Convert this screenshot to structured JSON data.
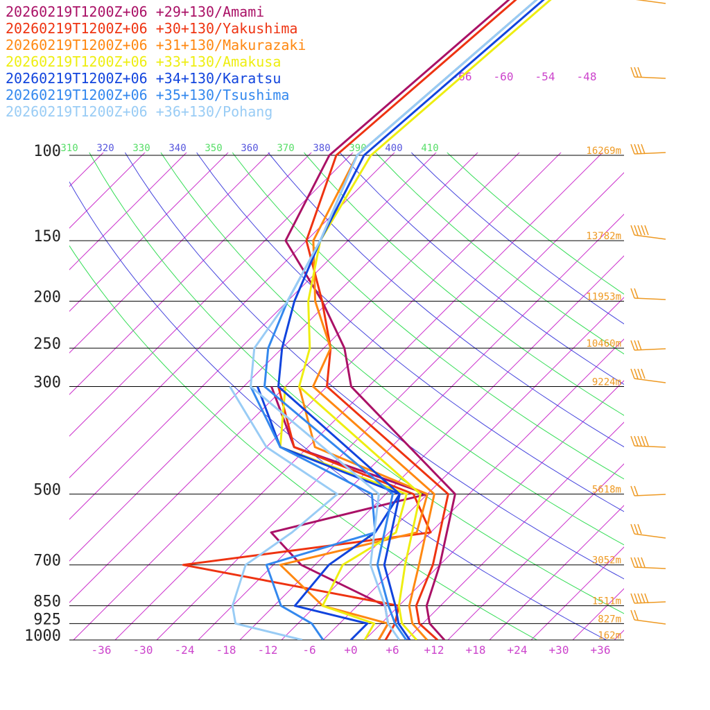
{
  "chart_data": {
    "type": "line",
    "subtype": "skew-T log-P sounding",
    "pressure_levels": [
      100,
      150,
      200,
      250,
      300,
      500,
      700,
      850,
      925,
      1000
    ],
    "pressure_labels": [
      "100",
      "150",
      "200",
      "250",
      "300",
      "500",
      "700",
      "850",
      "925",
      "1000"
    ],
    "heights": [
      {
        "p": 100,
        "label": "16269m"
      },
      {
        "p": 150,
        "label": "13782m"
      },
      {
        "p": 200,
        "label": "11953m"
      },
      {
        "p": 250,
        "label": "10460m"
      },
      {
        "p": 300,
        "label": "9224m"
      },
      {
        "p": 500,
        "label": "5618m"
      },
      {
        "p": 700,
        "label": "3052m"
      },
      {
        "p": 850,
        "label": "1511m"
      },
      {
        "p": 925,
        "label": "827m"
      },
      {
        "p": 1000,
        "label": "162m"
      }
    ],
    "x_ticks": [
      "-36",
      "-30",
      "-24",
      "-18",
      "-12",
      "-6",
      "+0",
      "+6",
      "+12",
      "+18",
      "+24",
      "+30",
      "+36"
    ],
    "x_tick_values": [
      -36,
      -30,
      -24,
      -18,
      -12,
      -6,
      0,
      6,
      12,
      18,
      24,
      30,
      36
    ],
    "theta_labels": [
      "310",
      "320",
      "330",
      "340",
      "350",
      "360",
      "370",
      "380",
      "390",
      "400",
      "410"
    ],
    "mixing_labels": [
      "-66",
      "-60",
      "-54",
      "-48"
    ],
    "series": [
      {
        "name": "20260219T1200Z+06 +29+130/Amami",
        "color": "#aa1166",
        "temp": [
          [
            1000,
            13.5
          ],
          [
            925,
            9
          ],
          [
            850,
            6
          ],
          [
            700,
            2
          ],
          [
            500,
            -6
          ],
          [
            300,
            -36.5
          ],
          [
            250,
            -43
          ],
          [
            200,
            -53
          ],
          [
            150,
            -67
          ],
          [
            100,
            -73
          ]
        ],
        "dew": [
          [
            1000,
            4
          ],
          [
            925,
            3
          ],
          [
            850,
            0
          ],
          [
            700,
            -18
          ],
          [
            600,
            -27
          ],
          [
            500,
            -10
          ],
          [
            400,
            -36
          ],
          [
            300,
            -48
          ]
        ]
      },
      {
        "name": "20260219T1200Z+06 +30+130/Yakushima",
        "color": "#ee3311",
        "temp": [
          [
            1000,
            12.5
          ],
          [
            925,
            7.5
          ],
          [
            850,
            4.5
          ],
          [
            700,
            1
          ],
          [
            500,
            -7
          ],
          [
            300,
            -40
          ],
          [
            250,
            -45
          ],
          [
            200,
            -53
          ],
          [
            150,
            -64
          ],
          [
            100,
            -72
          ]
        ],
        "dew": [
          [
            1000,
            5
          ],
          [
            925,
            4
          ],
          [
            850,
            2
          ],
          [
            700,
            -35
          ],
          [
            600,
            -4
          ],
          [
            500,
            -12
          ],
          [
            400,
            -36
          ],
          [
            300,
            -47
          ]
        ]
      },
      {
        "name": "20260219T1200Z+06 +31+130/Makurazaki",
        "color": "#ff8811",
        "temp": [
          [
            1000,
            11
          ],
          [
            925,
            6.5
          ],
          [
            850,
            3.5
          ],
          [
            700,
            -1
          ],
          [
            500,
            -9
          ],
          [
            300,
            -42
          ],
          [
            250,
            -45
          ],
          [
            200,
            -54
          ],
          [
            150,
            -63
          ],
          [
            100,
            -69
          ]
        ],
        "dew": [
          [
            1000,
            4
          ],
          [
            925,
            3
          ],
          [
            850,
            -9
          ],
          [
            700,
            -21
          ],
          [
            600,
            -6
          ],
          [
            500,
            -10
          ],
          [
            400,
            -33
          ],
          [
            300,
            -44
          ]
        ]
      },
      {
        "name": "20260219T1200Z+06 +33+130/Amakusa",
        "color": "#eeee11",
        "temp": [
          [
            1000,
            9.5
          ],
          [
            925,
            5
          ],
          [
            850,
            2
          ],
          [
            700,
            -3
          ],
          [
            500,
            -11
          ],
          [
            300,
            -44
          ],
          [
            250,
            -48
          ],
          [
            200,
            -55
          ],
          [
            150,
            -62
          ],
          [
            100,
            -67
          ]
        ],
        "dew": [
          [
            1000,
            2
          ],
          [
            925,
            1
          ],
          [
            850,
            -9
          ],
          [
            700,
            -12
          ],
          [
            600,
            -9
          ],
          [
            500,
            -13
          ],
          [
            400,
            -38
          ],
          [
            300,
            -46
          ]
        ]
      },
      {
        "name": "20260219T1200Z+06 +34+130/Karatsu",
        "color": "#1144dd",
        "temp": [
          [
            1000,
            8.5
          ],
          [
            925,
            4.5
          ],
          [
            850,
            1.5
          ],
          [
            700,
            -6
          ],
          [
            500,
            -14
          ],
          [
            300,
            -47
          ],
          [
            250,
            -52
          ],
          [
            200,
            -57
          ],
          [
            150,
            -62
          ],
          [
            100,
            -68
          ]
        ],
        "dew": [
          [
            1000,
            0
          ],
          [
            925,
            0
          ],
          [
            850,
            -13
          ],
          [
            700,
            -14
          ],
          [
            600,
            -12
          ],
          [
            500,
            -14
          ],
          [
            400,
            -38
          ],
          [
            300,
            -50
          ]
        ]
      },
      {
        "name": "20260219T1200Z+06 +35+130/Tsushima",
        "color": "#3388ee",
        "temp": [
          [
            1000,
            8
          ],
          [
            925,
            4
          ],
          [
            850,
            0.5
          ],
          [
            700,
            -7
          ],
          [
            500,
            -15
          ],
          [
            300,
            -49
          ],
          [
            250,
            -54
          ],
          [
            200,
            -58
          ],
          [
            150,
            -62
          ],
          [
            100,
            -69
          ]
        ],
        "dew": [
          [
            1000,
            -4
          ],
          [
            925,
            -8
          ],
          [
            850,
            -15
          ],
          [
            700,
            -23
          ],
          [
            600,
            -12
          ],
          [
            500,
            -18
          ],
          [
            400,
            -38
          ],
          [
            300,
            -51
          ]
        ]
      },
      {
        "name": "20260219T1200Z+06 +36+130/Pohang",
        "color": "#99ccf5",
        "temp": [
          [
            1000,
            7
          ],
          [
            925,
            3
          ],
          [
            850,
            0
          ],
          [
            700,
            -8
          ],
          [
            500,
            -17
          ],
          [
            300,
            -51
          ],
          [
            250,
            -56
          ],
          [
            200,
            -58
          ],
          [
            150,
            -62
          ],
          [
            100,
            -69
          ]
        ],
        "dew": [
          [
            1000,
            -7
          ],
          [
            925,
            -19
          ],
          [
            850,
            -22
          ],
          [
            700,
            -26
          ],
          [
            600,
            -24
          ],
          [
            500,
            -23
          ],
          [
            400,
            -40
          ],
          [
            300,
            -54
          ]
        ]
      }
    ]
  }
}
